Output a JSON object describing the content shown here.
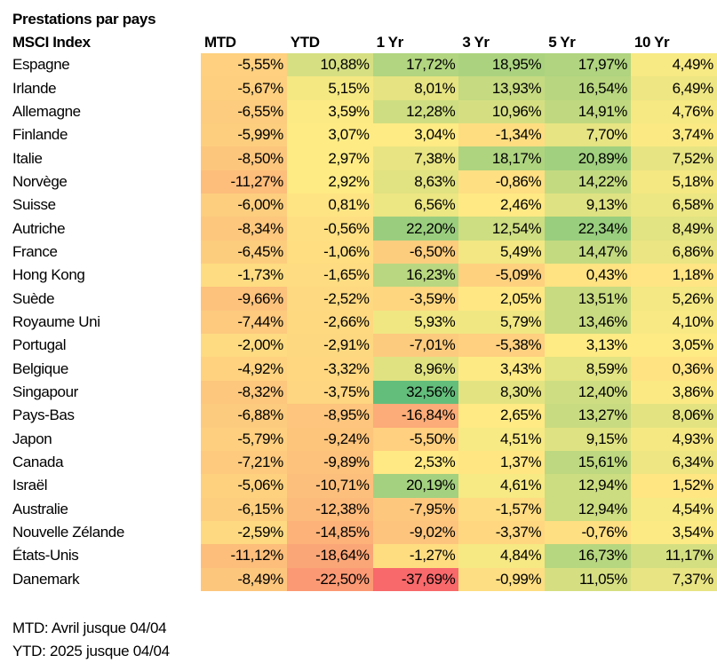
{
  "chart_data": {
    "type": "heatmap",
    "title": "Prestations par pays",
    "row_header": "MSCI Index",
    "columns": [
      "MTD",
      "YTD",
      "1 Yr",
      "3 Yr",
      "5 Yr",
      "10 Yr"
    ],
    "rows": [
      {
        "label": "Espagne",
        "values": [
          "-5,55%",
          "10,88%",
          "17,72%",
          "18,95%",
          "17,97%",
          "4,49%"
        ]
      },
      {
        "label": "Irlande",
        "values": [
          "-5,67%",
          "5,15%",
          "8,01%",
          "13,93%",
          "16,54%",
          "6,49%"
        ]
      },
      {
        "label": "Allemagne",
        "values": [
          "-6,55%",
          "3,59%",
          "12,28%",
          "10,96%",
          "14,91%",
          "4,76%"
        ]
      },
      {
        "label": "Finlande",
        "values": [
          "-5,99%",
          "3,07%",
          "3,04%",
          "-1,34%",
          "7,70%",
          "3,74%"
        ]
      },
      {
        "label": "Italie",
        "values": [
          "-8,50%",
          "2,97%",
          "7,38%",
          "18,17%",
          "20,89%",
          "7,52%"
        ]
      },
      {
        "label": "Norvège",
        "values": [
          "-11,27%",
          "2,92%",
          "8,63%",
          "-0,86%",
          "14,22%",
          "5,18%"
        ]
      },
      {
        "label": "Suisse",
        "values": [
          "-6,00%",
          "0,81%",
          "6,56%",
          "2,46%",
          "9,13%",
          "6,58%"
        ]
      },
      {
        "label": "Autriche",
        "values": [
          "-8,34%",
          "-0,56%",
          "22,20%",
          "12,54%",
          "22,34%",
          "8,49%"
        ]
      },
      {
        "label": "France",
        "values": [
          "-6,45%",
          "-1,06%",
          "-6,50%",
          "5,49%",
          "14,47%",
          "6,86%"
        ]
      },
      {
        "label": "Hong Kong",
        "values": [
          "-1,73%",
          "-1,65%",
          "16,23%",
          "-5,09%",
          "0,43%",
          "1,18%"
        ]
      },
      {
        "label": "Suède",
        "values": [
          "-9,66%",
          "-2,52%",
          "-3,59%",
          "2,05%",
          "13,51%",
          "5,26%"
        ]
      },
      {
        "label": "Royaume Uni",
        "values": [
          "-7,44%",
          "-2,66%",
          "5,93%",
          "5,79%",
          "13,46%",
          "4,10%"
        ]
      },
      {
        "label": "Portugal",
        "values": [
          "-2,00%",
          "-2,91%",
          "-7,01%",
          "-5,38%",
          "3,13%",
          "3,05%"
        ]
      },
      {
        "label": "Belgique",
        "values": [
          "-4,92%",
          "-3,32%",
          "8,96%",
          "3,43%",
          "8,59%",
          "0,36%"
        ]
      },
      {
        "label": "Singapour",
        "values": [
          "-8,32%",
          "-3,75%",
          "32,56%",
          "8,30%",
          "12,40%",
          "3,86%"
        ]
      },
      {
        "label": "Pays-Bas",
        "values": [
          "-6,88%",
          "-8,95%",
          "-16,84%",
          "2,65%",
          "13,27%",
          "8,06%"
        ]
      },
      {
        "label": "Japon",
        "values": [
          "-5,79%",
          "-9,24%",
          "-5,50%",
          "4,51%",
          "9,15%",
          "4,93%"
        ]
      },
      {
        "label": "Canada",
        "values": [
          "-7,21%",
          "-9,89%",
          "2,53%",
          "1,37%",
          "15,61%",
          "6,34%"
        ]
      },
      {
        "label": "Israël",
        "values": [
          "-5,06%",
          "-10,71%",
          "20,19%",
          "4,61%",
          "12,94%",
          "1,52%"
        ]
      },
      {
        "label": "Australie",
        "values": [
          "-6,15%",
          "-12,38%",
          "-7,95%",
          "-1,57%",
          "12,94%",
          "4,54%"
        ]
      },
      {
        "label": "Nouvelle Zélande",
        "values": [
          "-2,59%",
          "-14,85%",
          "-9,02%",
          "-3,37%",
          "-0,76%",
          "3,54%"
        ]
      },
      {
        "label": "États-Unis",
        "values": [
          "-11,12%",
          "-18,64%",
          "-1,27%",
          "4,84%",
          "16,73%",
          "11,17%"
        ]
      },
      {
        "label": "Danemark",
        "values": [
          "-8,49%",
          "-22,50%",
          "-37,69%",
          "-0,99%",
          "11,05%",
          "7,37%"
        ]
      }
    ],
    "color_scale": {
      "low": "#F8696B",
      "mid": "#FFEB84",
      "high": "#63BE7B"
    }
  },
  "notes": [
    "MTD: Avril jusque 04/04",
    "YTD: 2025 jusque 04/04"
  ]
}
